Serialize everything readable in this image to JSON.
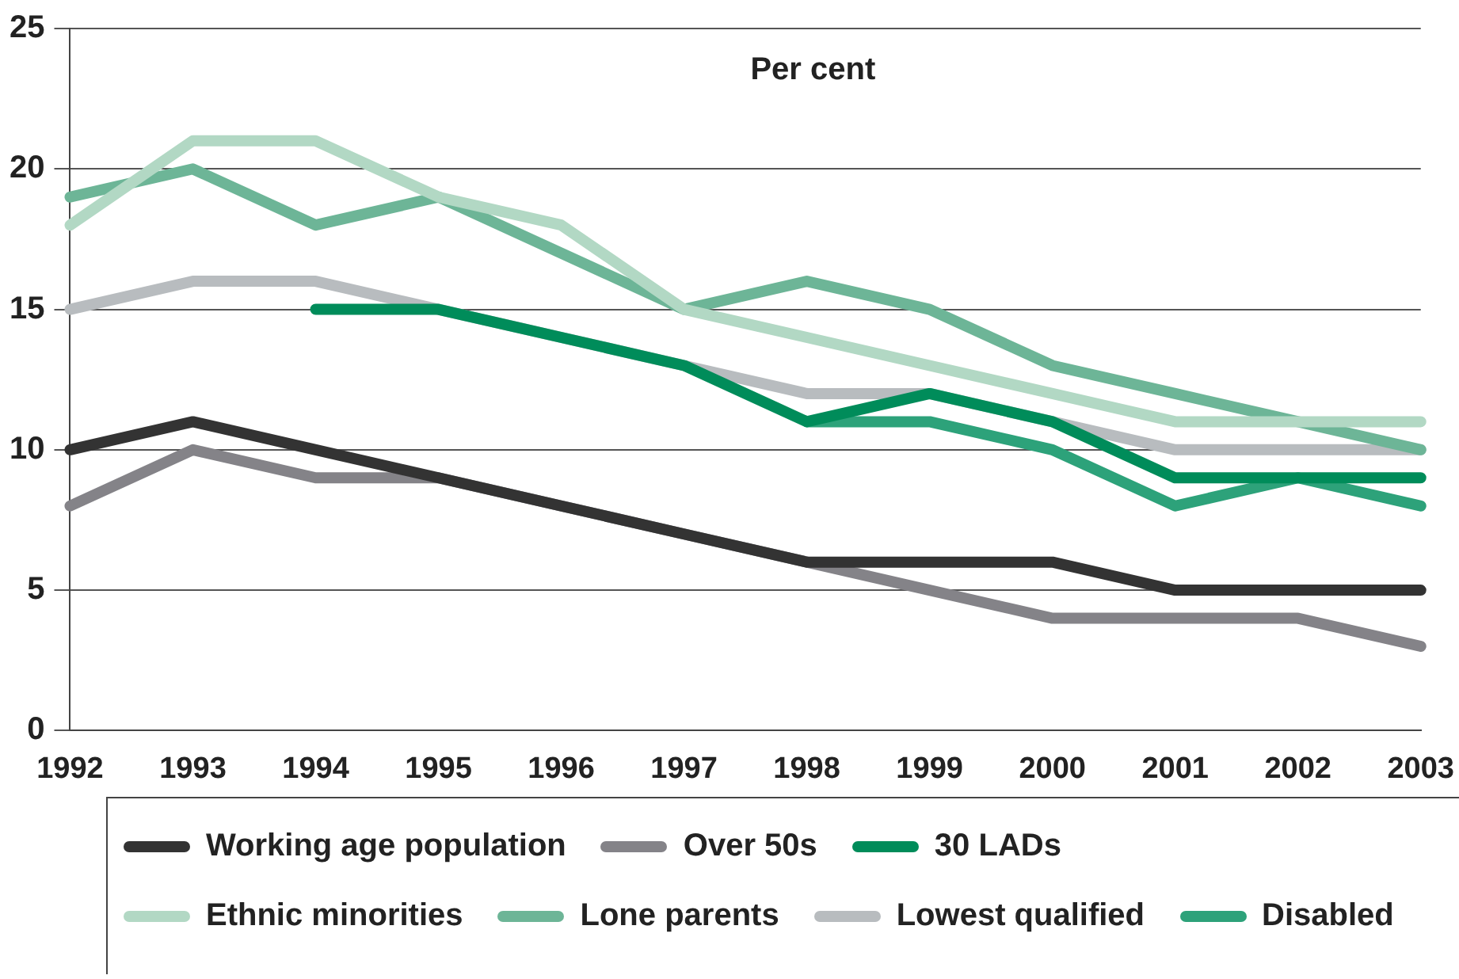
{
  "chart_data": {
    "type": "line",
    "ylabel": "Per cent",
    "categories": [
      "1992",
      "1993",
      "1994",
      "1995",
      "1996",
      "1997",
      "1998",
      "1999",
      "2000",
      "2001",
      "2002",
      "2003"
    ],
    "series": [
      {
        "name": "Working age population",
        "color": "#333333",
        "values": [
          10,
          11,
          10,
          9,
          8,
          7,
          6,
          6,
          6,
          5,
          5,
          5
        ]
      },
      {
        "name": "Over 50s",
        "color": "#848388",
        "values": [
          8,
          10,
          9,
          9,
          8,
          7,
          6,
          5,
          4,
          4,
          4,
          3
        ]
      },
      {
        "name": "30 LADs",
        "color": "#008c5a",
        "values": [
          null,
          null,
          15,
          15,
          14,
          13,
          11,
          12,
          11,
          9,
          9,
          9
        ]
      },
      {
        "name": "Ethnic minorities",
        "color": "#b2d8c4",
        "values": [
          18,
          21,
          21,
          19,
          18,
          15,
          14,
          13,
          12,
          11,
          11,
          11
        ]
      },
      {
        "name": "Lone parents",
        "color": "#6db597",
        "values": [
          19,
          20,
          18,
          19,
          17,
          15,
          16,
          15,
          13,
          12,
          11,
          10
        ]
      },
      {
        "name": "Lowest qualified",
        "color": "#b8bcbf",
        "values": [
          15,
          16,
          16,
          15,
          14,
          13,
          12,
          12,
          11,
          10,
          10,
          10
        ]
      },
      {
        "name": "Disabled",
        "color": "#2da27a",
        "values": [
          null,
          null,
          null,
          null,
          null,
          null,
          11,
          11,
          10,
          8,
          9,
          8
        ]
      }
    ],
    "ylim": [
      0,
      25
    ],
    "yticks": [
      0,
      5,
      10,
      15,
      20,
      25
    ],
    "grid": "y",
    "legend": "bottom",
    "marker": "none",
    "line_style": "solid"
  }
}
